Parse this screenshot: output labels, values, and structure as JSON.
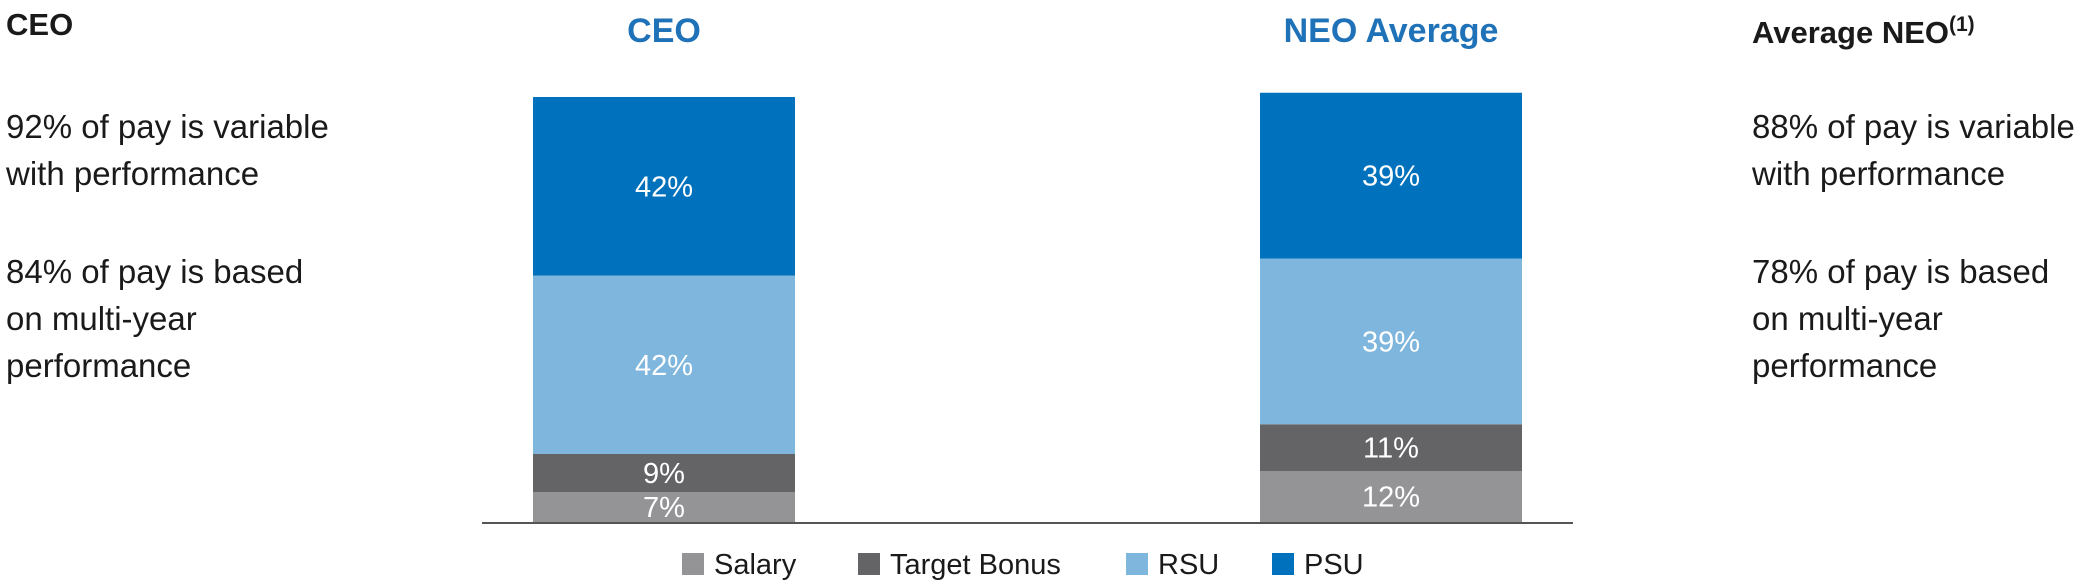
{
  "left_panel": {
    "heading": "CEO",
    "line1": "92% of pay is variable",
    "line2": "with performance",
    "line3": "84% of pay is based",
    "line4": "on multi-year",
    "line5": "performance"
  },
  "right_panel": {
    "heading": "Average NEO",
    "heading_sup": "(1)",
    "line1": "88% of pay is variable",
    "line2": "with performance",
    "line3": "78% of pay is based",
    "line4": "on multi-year",
    "line5": "performance"
  },
  "colors": {
    "Salary": "#949497",
    "Target Bonus": "#646467",
    "RSU": "#7fb6dd",
    "PSU": "#0071bc",
    "title": "#1f72b8",
    "axis": "#555555"
  },
  "chart_data": {
    "type": "bar",
    "stacked": true,
    "categories": [
      "CEO",
      "NEO Average"
    ],
    "series": [
      {
        "name": "Salary",
        "values": [
          7,
          12
        ]
      },
      {
        "name": "Target Bonus",
        "values": [
          9,
          11
        ]
      },
      {
        "name": "RSU",
        "values": [
          42,
          39
        ]
      },
      {
        "name": "PSU",
        "values": [
          42,
          39
        ]
      }
    ],
    "ylim": [
      0,
      100
    ],
    "grid": false,
    "legend_position": "bottom"
  }
}
